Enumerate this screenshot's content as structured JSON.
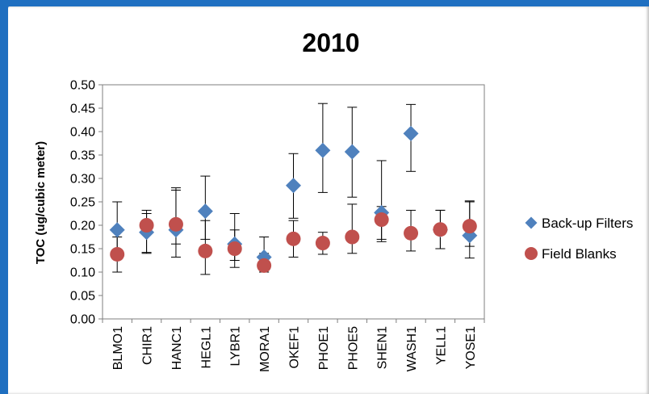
{
  "chart_data": {
    "type": "scatter",
    "title": "2010",
    "xlabel": "",
    "ylabel": "TOC (ug/cubic meter)",
    "ylim": [
      0,
      0.5
    ],
    "yticks": [
      "0.00",
      "0.05",
      "0.10",
      "0.15",
      "0.20",
      "0.25",
      "0.30",
      "0.35",
      "0.40",
      "0.45",
      "0.50"
    ],
    "categories": [
      "BLMO1",
      "CHIR1",
      "HANC1",
      "HEGL1",
      "LYBR1",
      "MORA1",
      "OKEF1",
      "PHOE1",
      "PHOE5",
      "SHEN1",
      "WASH1",
      "YELL1",
      "YOSE1"
    ],
    "grid": false,
    "legend_position": "right",
    "series": [
      {
        "name": "Back-up Filters",
        "marker": "diamond",
        "color": "#4f81bd",
        "values": [
          0.19,
          0.185,
          0.19,
          0.23,
          0.16,
          0.132,
          0.285,
          0.36,
          0.357,
          0.227,
          0.396,
          0.19,
          0.178
        ],
        "err_low": [
          0.13,
          0.14,
          0.16,
          0.17,
          0.125,
          0.1,
          0.215,
          0.27,
          0.26,
          0.17,
          0.315,
          0.15,
          0.13
        ],
        "err_high": [
          0.25,
          0.225,
          0.28,
          0.305,
          0.225,
          0.175,
          0.353,
          0.46,
          0.452,
          0.338,
          0.458,
          0.232,
          0.25
        ]
      },
      {
        "name": "Field Blanks",
        "marker": "circle",
        "color": "#c0504d",
        "values": [
          0.138,
          0.2,
          0.202,
          0.145,
          0.15,
          0.114,
          0.171,
          0.162,
          0.175,
          0.212,
          0.183,
          0.191,
          0.198
        ],
        "err_low": [
          0.1,
          0.142,
          0.132,
          0.095,
          0.11,
          0.1,
          0.132,
          0.138,
          0.14,
          0.165,
          0.145,
          0.15,
          0.155
        ],
        "err_high": [
          0.175,
          0.232,
          0.275,
          0.21,
          0.19,
          0.14,
          0.21,
          0.185,
          0.245,
          0.24,
          0.232,
          0.232,
          0.252
        ]
      }
    ]
  }
}
